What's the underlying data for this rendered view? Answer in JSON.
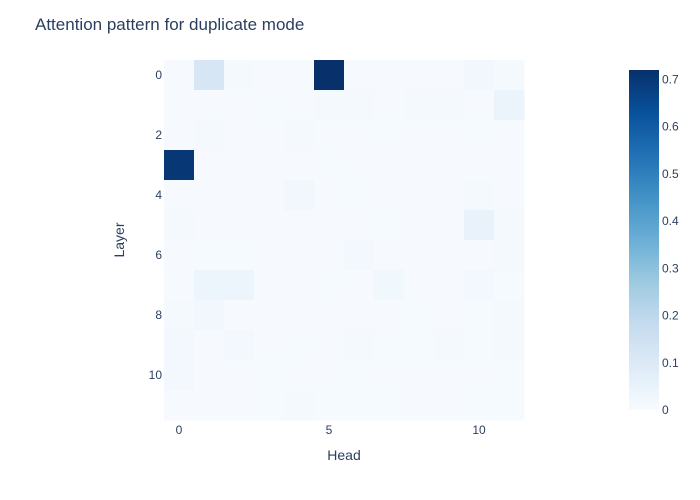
{
  "chart_data": {
    "type": "heatmap",
    "title": "Attention pattern for duplicate mode",
    "xlabel": "Head",
    "ylabel": "Layer",
    "x_tick_labels": [
      "0",
      "5",
      "10"
    ],
    "x_tick_values": [
      0,
      5,
      10
    ],
    "y_tick_labels": [
      "0",
      "2",
      "4",
      "6",
      "8",
      "10"
    ],
    "y_tick_values": [
      0,
      2,
      4,
      6,
      8,
      10
    ],
    "colorbar_tick_labels": [
      "0",
      "0.1",
      "0.2",
      "0.3",
      "0.4",
      "0.5",
      "0.6",
      "0.7"
    ],
    "colorbar_tick_values": [
      0,
      0.1,
      0.2,
      0.3,
      0.4,
      0.5,
      0.6,
      0.7
    ],
    "zmin": 0,
    "zmax": 0.72,
    "colorscale": [
      [
        0,
        "#f7fbff"
      ],
      [
        0.125,
        "#deebf7"
      ],
      [
        0.25,
        "#c6dbef"
      ],
      [
        0.375,
        "#9ecae1"
      ],
      [
        0.5,
        "#6baed6"
      ],
      [
        0.625,
        "#4292c6"
      ],
      [
        0.75,
        "#2171b5"
      ],
      [
        0.875,
        "#08519c"
      ],
      [
        1,
        "#08306b"
      ]
    ],
    "layers": [
      0,
      1,
      2,
      3,
      4,
      5,
      6,
      7,
      8,
      9,
      10,
      11
    ],
    "heads": [
      0,
      1,
      2,
      3,
      4,
      5,
      6,
      7,
      8,
      9,
      10,
      11
    ],
    "z": [
      [
        0.005,
        0.12,
        0.01,
        0.005,
        0.005,
        0.72,
        0.005,
        0.005,
        0.005,
        0.005,
        0.02,
        0.01
      ],
      [
        0.005,
        0.005,
        0.005,
        0.008,
        0.005,
        0.012,
        0.012,
        0.005,
        0.01,
        0.01,
        0.005,
        0.04
      ],
      [
        0.005,
        0.01,
        0.005,
        0.005,
        0.01,
        0.005,
        0.005,
        0.008,
        0.005,
        0.005,
        0.008,
        0.005
      ],
      [
        0.7,
        0.005,
        0.005,
        0.005,
        0.005,
        0.008,
        0.005,
        0.005,
        0.005,
        0.005,
        0.005,
        0.005
      ],
      [
        0.005,
        0.005,
        0.005,
        0.005,
        0.02,
        0.005,
        0.008,
        0.005,
        0.005,
        0.005,
        0.01,
        0.005
      ],
      [
        0.01,
        0.005,
        0.005,
        0.005,
        0.005,
        0.005,
        0.005,
        0.008,
        0.005,
        0.005,
        0.05,
        0.01
      ],
      [
        0.005,
        0.008,
        0.008,
        0.005,
        0.005,
        0.005,
        0.015,
        0.005,
        0.005,
        0.005,
        0.005,
        0.01
      ],
      [
        0.005,
        0.035,
        0.035,
        0.005,
        0.005,
        0.008,
        0.005,
        0.025,
        0.005,
        0.005,
        0.015,
        0.008
      ],
      [
        0.01,
        0.02,
        0.005,
        0.005,
        0.005,
        0.005,
        0.005,
        0.005,
        0.008,
        0.005,
        0.008,
        0.01
      ],
      [
        0.015,
        0.005,
        0.015,
        0.005,
        0.008,
        0.005,
        0.012,
        0.008,
        0.008,
        0.012,
        0.008,
        0.01
      ],
      [
        0.015,
        0.005,
        0.005,
        0.008,
        0.005,
        0.005,
        0.008,
        0.005,
        0.005,
        0.005,
        0.005,
        0.008
      ],
      [
        0.005,
        0.005,
        0.005,
        0.008,
        0.01,
        0.008,
        0.008,
        0.008,
        0.005,
        0.005,
        0.008,
        0.008
      ]
    ]
  }
}
